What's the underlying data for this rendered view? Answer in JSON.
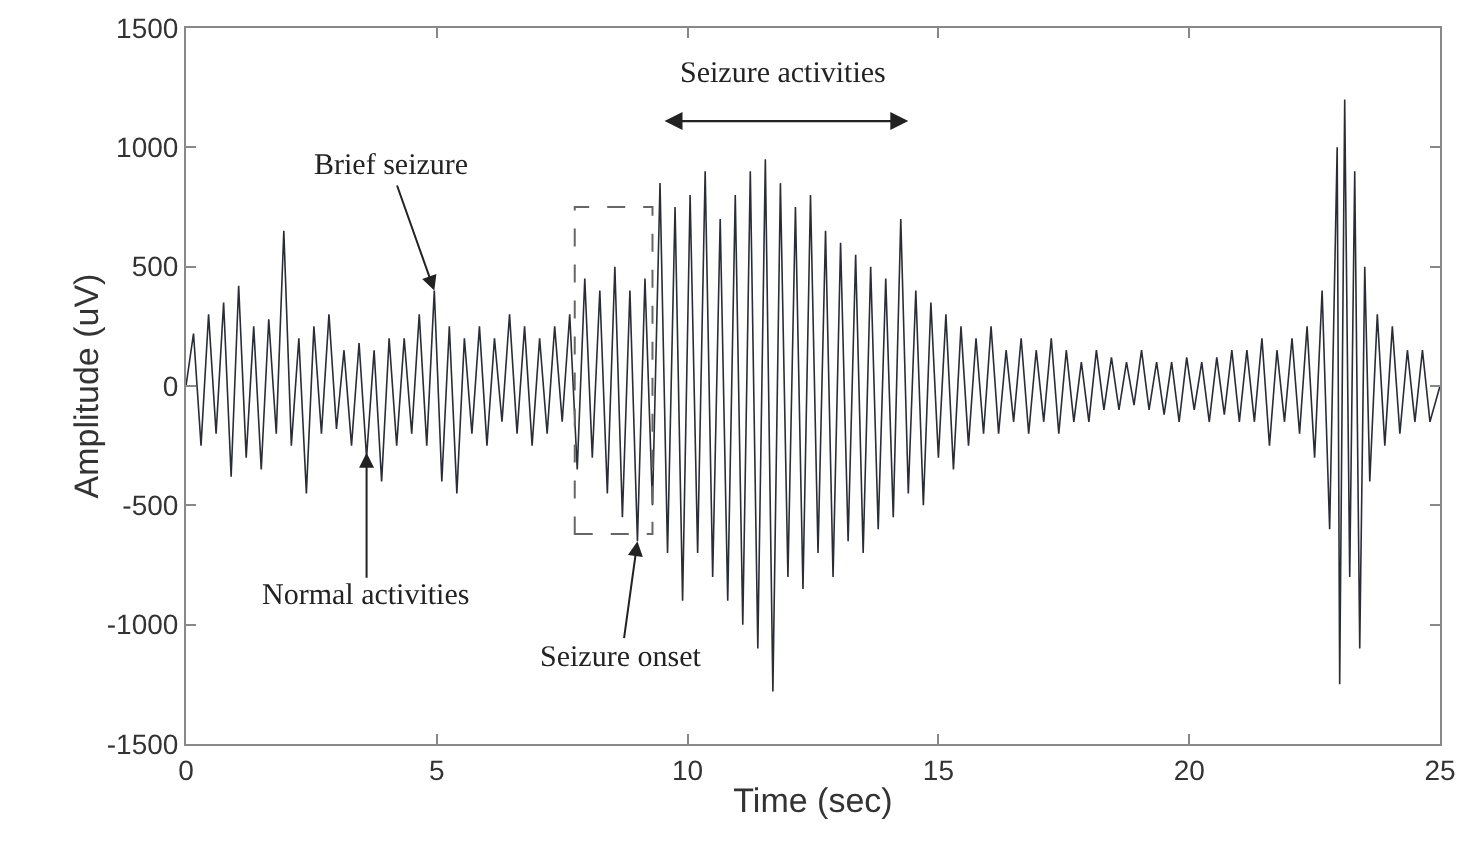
{
  "chart_data": {
    "type": "line",
    "xlabel": "Time (sec)",
    "ylabel": "Amplitude (uV)",
    "xlim": [
      0,
      25
    ],
    "xticks": [
      0,
      5,
      10,
      15,
      20,
      25
    ],
    "ylim": [
      -1500,
      1500
    ],
    "yticks": [
      -1500,
      -1000,
      -500,
      0,
      500,
      1000,
      1500
    ],
    "grid": false,
    "marker": "none",
    "line_style": "solid",
    "series": [
      {
        "color": "#2b2d36",
        "x": [
          0,
          0.15,
          0.3,
          0.45,
          0.6,
          0.75,
          0.9,
          1.05,
          1.2,
          1.35,
          1.5,
          1.65,
          1.8,
          1.95,
          2.1,
          2.25,
          2.4,
          2.55,
          2.7,
          2.85,
          3.0,
          3.15,
          3.3,
          3.45,
          3.6,
          3.75,
          3.9,
          4.05,
          4.2,
          4.35,
          4.5,
          4.65,
          4.8,
          4.95,
          5.1,
          5.25,
          5.4,
          5.55,
          5.7,
          5.85,
          6.0,
          6.15,
          6.3,
          6.45,
          6.6,
          6.75,
          6.9,
          7.05,
          7.2,
          7.35,
          7.5,
          7.65,
          7.8,
          7.95,
          8.1,
          8.25,
          8.4,
          8.55,
          8.7,
          8.85,
          9.0,
          9.15,
          9.3,
          9.45,
          9.6,
          9.75,
          9.9,
          10.05,
          10.2,
          10.35,
          10.5,
          10.65,
          10.8,
          10.95,
          11.1,
          11.25,
          11.4,
          11.55,
          11.7,
          11.85,
          12.0,
          12.15,
          12.3,
          12.45,
          12.6,
          12.75,
          12.9,
          13.05,
          13.2,
          13.35,
          13.5,
          13.65,
          13.8,
          13.95,
          14.1,
          14.25,
          14.4,
          14.55,
          14.7,
          14.85,
          15.0,
          15.15,
          15.3,
          15.45,
          15.6,
          15.75,
          15.9,
          16.05,
          16.2,
          16.35,
          16.5,
          16.65,
          16.8,
          16.95,
          17.1,
          17.25,
          17.4,
          17.55,
          17.7,
          17.85,
          18.0,
          18.15,
          18.3,
          18.45,
          18.6,
          18.75,
          18.9,
          19.05,
          19.2,
          19.35,
          19.5,
          19.65,
          19.8,
          19.95,
          20.1,
          20.25,
          20.4,
          20.55,
          20.7,
          20.85,
          21.0,
          21.15,
          21.3,
          21.45,
          21.6,
          21.75,
          21.9,
          22.05,
          22.2,
          22.35,
          22.5,
          22.65,
          22.8,
          22.95,
          23.0,
          23.1,
          23.2,
          23.3,
          23.4,
          23.5,
          23.6,
          23.75,
          23.9,
          24.05,
          24.2,
          24.35,
          24.5,
          24.65,
          24.8,
          25.0
        ],
        "values": [
          0,
          220,
          -250,
          300,
          -200,
          350,
          -380,
          420,
          -300,
          250,
          -350,
          280,
          -200,
          650,
          -250,
          200,
          -450,
          250,
          -200,
          300,
          -180,
          150,
          -250,
          180,
          -300,
          150,
          -400,
          200,
          -250,
          200,
          -200,
          300,
          -250,
          400,
          -400,
          250,
          -450,
          200,
          -200,
          250,
          -250,
          200,
          -150,
          300,
          -200,
          250,
          -250,
          200,
          -200,
          250,
          -150,
          300,
          -350,
          450,
          -300,
          400,
          -450,
          500,
          -550,
          400,
          -650,
          450,
          -500,
          850,
          -700,
          750,
          -900,
          800,
          -700,
          900,
          -800,
          700,
          -900,
          800,
          -1000,
          900,
          -1100,
          950,
          -1280,
          850,
          -800,
          750,
          -850,
          800,
          -700,
          650,
          -800,
          600,
          -650,
          550,
          -700,
          500,
          -600,
          450,
          -550,
          700,
          -450,
          400,
          -500,
          350,
          -300,
          300,
          -350,
          250,
          -250,
          200,
          -200,
          250,
          -200,
          150,
          -150,
          200,
          -200,
          150,
          -150,
          200,
          -200,
          150,
          -150,
          100,
          -150,
          150,
          -100,
          120,
          -100,
          100,
          -80,
          150,
          -100,
          100,
          -120,
          100,
          -150,
          120,
          -100,
          100,
          -150,
          120,
          -120,
          150,
          -150,
          150,
          -150,
          200,
          -250,
          150,
          -150,
          200,
          -200,
          250,
          -300,
          400,
          -600,
          1000,
          -1250,
          1200,
          -800,
          900,
          -1100,
          500,
          -400,
          300,
          -250,
          250,
          -200,
          150,
          -150,
          150,
          -150,
          0
        ]
      }
    ],
    "annotations": [
      "Seizure activities",
      {
        "text": "Brief seizure",
        "x": 4.95,
        "y": 400
      },
      {
        "text": "Normal activities",
        "x": 3.6,
        "y": -280
      },
      {
        "text": "Seizure onset",
        "x": 9.0,
        "y": -650
      }
    ]
  }
}
